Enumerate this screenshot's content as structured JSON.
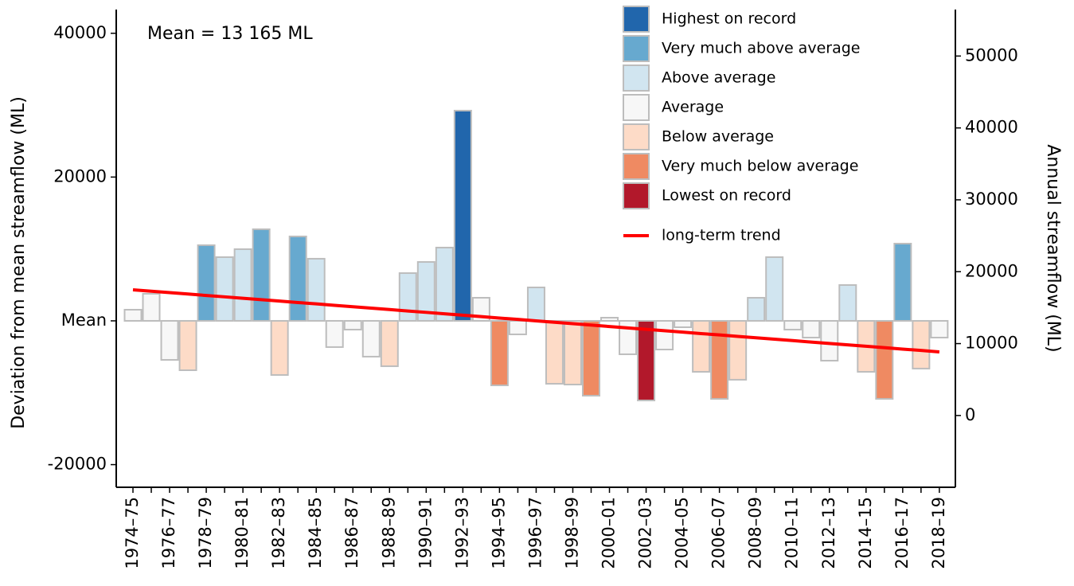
{
  "chart_data": {
    "type": "bar",
    "annotation": "Mean = 13 165 ML",
    "ylabel": "Deviation from mean streamflow (ML)",
    "y2label": "Annual streamflow (ML)",
    "categories": [
      "1974–75",
      null,
      "1976–77",
      null,
      "1978–79",
      null,
      "1980–81",
      null,
      "1982–83",
      null,
      "1984–85",
      null,
      "1986–87",
      null,
      "1988–89",
      null,
      "1990–91",
      null,
      "1992–93",
      null,
      "1994–95",
      null,
      "1996–97",
      null,
      "1998–99",
      null,
      "2000–01",
      null,
      "2002–03",
      null,
      "2004–05",
      null,
      "2006–07",
      null,
      "2008–09",
      null,
      "2010–11",
      null,
      "2012–13",
      null,
      "2014–15",
      null,
      "2016–17",
      null,
      "2018–19"
    ],
    "values": [
      1550,
      3770,
      -5430,
      -6870,
      10520,
      8860,
      9970,
      12740,
      -7530,
      11740,
      8640,
      -3650,
      -1220,
      -4980,
      -6310,
      6640,
      8190,
      10190,
      29240,
      3210,
      -8970,
      -1880,
      4650,
      -8750,
      -8860,
      -10410,
      440,
      -4650,
      -11070,
      -3990,
      -890,
      -7090,
      -10850,
      -8190,
      3210,
      8860,
      -1220,
      -2330,
      -5540,
      4980,
      -7090,
      -10850,
      10740,
      -6640,
      -2330
    ],
    "colors": [
      "#f7f7f7",
      "#f7f7f7",
      "#f7f7f7",
      "#fddbc7",
      "#67a9cf",
      "#d1e5f0",
      "#d1e5f0",
      "#67a9cf",
      "#fddbc7",
      "#67a9cf",
      "#d1e5f0",
      "#f7f7f7",
      "#f7f7f7",
      "#f7f7f7",
      "#fddbc7",
      "#d1e5f0",
      "#d1e5f0",
      "#d1e5f0",
      "#2166ac",
      "#f7f7f7",
      "#ef8a62",
      "#f7f7f7",
      "#d1e5f0",
      "#fddbc7",
      "#fddbc7",
      "#ef8a62",
      "#f7f7f7",
      "#f7f7f7",
      "#b2182b",
      "#f7f7f7",
      "#f7f7f7",
      "#fddbc7",
      "#ef8a62",
      "#fddbc7",
      "#d1e5f0",
      "#d1e5f0",
      "#f7f7f7",
      "#f7f7f7",
      "#f7f7f7",
      "#d1e5f0",
      "#fddbc7",
      "#ef8a62",
      "#67a9cf",
      "#fddbc7",
      "#f7f7f7"
    ],
    "legend": [
      {
        "name": "Highest on record",
        "color": "#2166ac"
      },
      {
        "name": "Very much above average",
        "color": "#67a9cf"
      },
      {
        "name": "Above average",
        "color": "#d1e5f0"
      },
      {
        "name": "Average",
        "color": "#f7f7f7"
      },
      {
        "name": "Below average",
        "color": "#fddbc7"
      },
      {
        "name": "Very much below average",
        "color": "#ef8a62"
      },
      {
        "name": "Lowest on record",
        "color": "#b2182b"
      }
    ],
    "trend": {
      "name": "long-term trend",
      "color": "#ff0000",
      "values": [
        4320,
        4120,
        3930,
        3730,
        3530,
        3340,
        3140,
        2950,
        2750,
        2550,
        2360,
        2160,
        1960,
        1770,
        1570,
        1370,
        1180,
        980,
        790,
        590,
        390,
        200,
        0,
        -200,
        -390,
        -590,
        -790,
        -980,
        -1180,
        -1370,
        -1570,
        -1770,
        -1960,
        -2160,
        -2360,
        -2550,
        -2750,
        -2950,
        -3140,
        -3340,
        -3530,
        -3730,
        -3930,
        -4120,
        -4320
      ]
    },
    "ylim": [
      -23150,
      43300
    ],
    "yticks": [
      -20000,
      {
        "value": 0,
        "label": "Mean"
      },
      20000,
      40000
    ],
    "y2lim": [
      -9985,
      56465
    ],
    "y2ticks": [
      0,
      10000,
      20000,
      30000,
      40000,
      50000
    ]
  }
}
